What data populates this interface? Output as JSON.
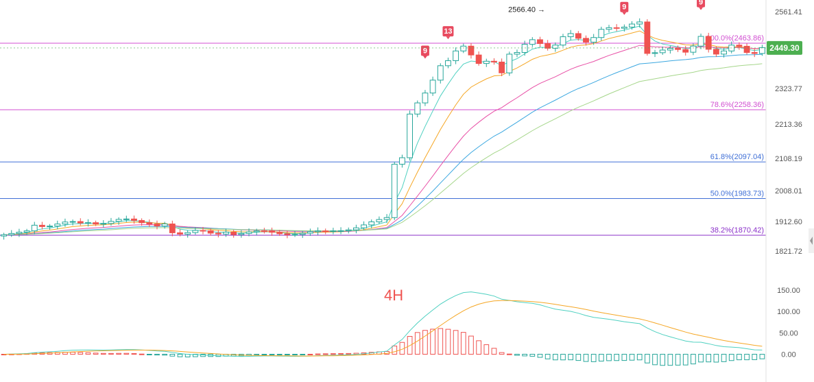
{
  "chart_data": {
    "type": "candlestick",
    "panel_label": "4H",
    "price_axis": {
      "ticks": [
        {
          "value": 2561.41,
          "label": "2561.41"
        },
        {
          "value": 2323.77,
          "label": "2323.77"
        },
        {
          "value": 2213.36,
          "label": "2213.36"
        },
        {
          "value": 2108.19,
          "label": "2108.19"
        },
        {
          "value": 2008.01,
          "label": "2008.01"
        },
        {
          "value": 1912.6,
          "label": "1912.60"
        },
        {
          "value": 1821.72,
          "label": "1821.72"
        }
      ],
      "ylim": [
        1800,
        2580
      ]
    },
    "current_price": {
      "value": 2449.3,
      "label": "2449.30",
      "color": "#4caf50"
    },
    "high_annotation": {
      "value": 2566.4,
      "label": "2566.40 →"
    },
    "fib_levels": [
      {
        "value": 2463.86,
        "label": "100.0%(2463.86)",
        "color": "#d14fd1"
      },
      {
        "value": 2258.36,
        "label": "78.6%(2258.36)",
        "color": "#d14fd1"
      },
      {
        "value": 2097.04,
        "label": "61.8%(2097.04)",
        "color": "#3f6fd6"
      },
      {
        "value": 1983.73,
        "label": "50.0%(1983.73)",
        "color": "#3f6fd6"
      },
      {
        "value": 1870.42,
        "label": "38.2%(1870.42)",
        "color": "#8a2fc9"
      }
    ],
    "td_markers": [
      {
        "index": 55,
        "price": 2410,
        "label": "9"
      },
      {
        "index": 58,
        "price": 2470,
        "label": "13"
      },
      {
        "index": 81,
        "price": 2545,
        "label": "9"
      },
      {
        "index": 91,
        "price": 2560,
        "label": "9"
      }
    ],
    "indicator_axis": {
      "ticks": [
        {
          "value": 150,
          "label": "150.00"
        },
        {
          "value": 100,
          "label": "100.00"
        },
        {
          "value": 50,
          "label": "50.00"
        },
        {
          "value": 0,
          "label": "0.00"
        }
      ],
      "ylim": [
        -40,
        165
      ]
    },
    "colors": {
      "up": "#26a69a",
      "down": "#ef5350",
      "ma_fast": "#4dd0c0",
      "ma_mid": "#f5a623",
      "ma_slow": "#e84fa6",
      "ma_slower": "#3aa7e0",
      "ma_slowest": "#a5d68a",
      "macd_dif": "#4dd0c0",
      "macd_dea": "#f5a623"
    }
  }
}
